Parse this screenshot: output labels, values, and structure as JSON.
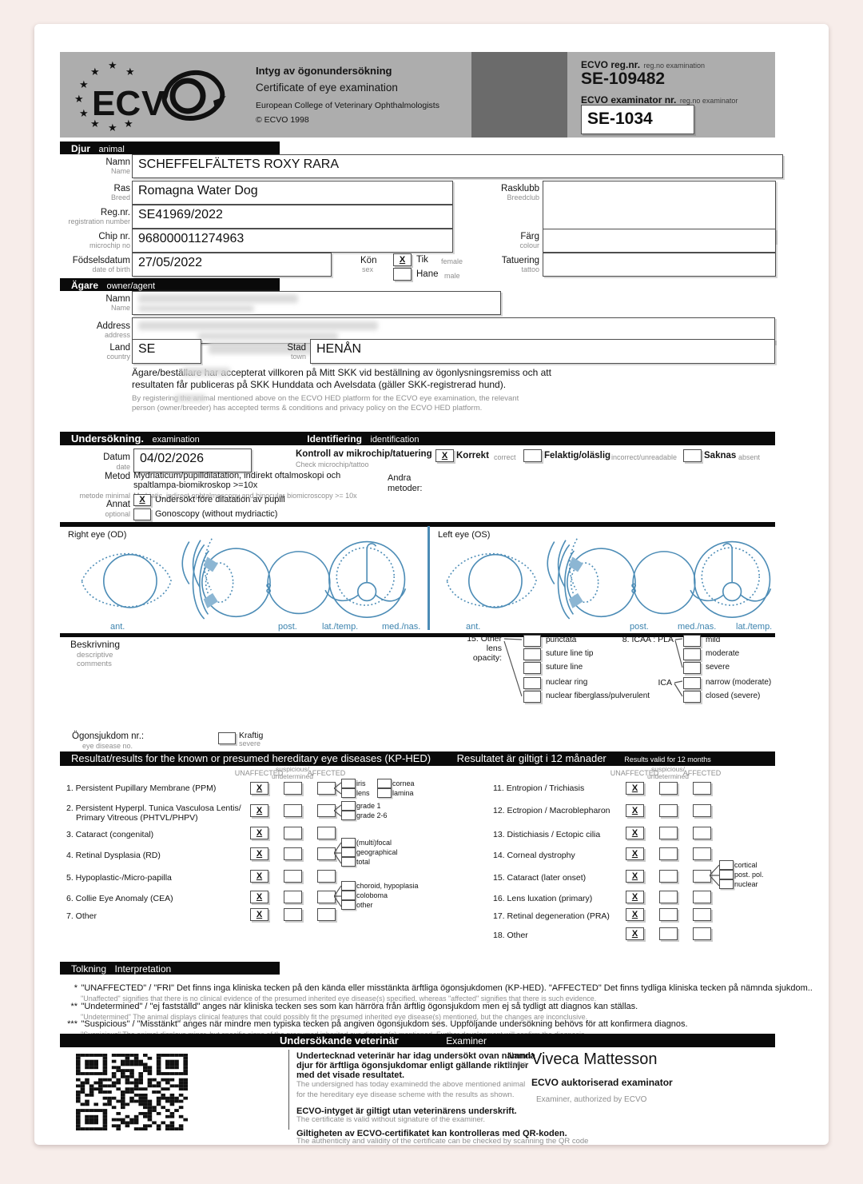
{
  "header": {
    "title_sv": "Intyg av ögonundersökning",
    "title_en": "Certificate of eye examination",
    "org": "European College of Veterinary Ophthalmologists",
    "copyright": "© ECVO 1998",
    "regnr_label": "ECVO reg.nr.",
    "regnr_sub": "reg.no examination",
    "regnr_value": "SE-109482",
    "examinator_label": "ECVO examinator nr.",
    "examinator_sub": "reg.no examinator",
    "examinator_value": "SE-1034",
    "logo_text": "ECVO"
  },
  "animal": {
    "section_sv": "Djur",
    "section_en": "animal",
    "name_label": "Namn",
    "name_sub": "Name",
    "name_value": "SCHEFFELFÄLTETS ROXY RARA",
    "breed_label": "Ras",
    "breed_sub": "Breed",
    "breed_value": "Romagna Water Dog",
    "regno_label": "Reg.nr.",
    "regno_sub": "registration number",
    "regno_value": "SE41969/2022",
    "chip_label": "Chip nr.",
    "chip_sub": "microchip no",
    "chip_value": "968000011274963",
    "dob_label": "Födselsdatum",
    "dob_sub": "date of birth",
    "dob_value": "27/05/2022",
    "sex_label": "Kön",
    "sex_sub": "sex",
    "sex_female_mark": "X",
    "sex_female_label": "Tik",
    "sex_female_sub": "female",
    "sex_male_mark": "",
    "sex_male_label": "Hane",
    "sex_male_sub": "male",
    "breedclub_label": "Rasklubb",
    "breedclub_sub": "Breedclub",
    "breedclub_value": "",
    "colour_label": "Färg",
    "colour_sub": "colour",
    "colour_value": "",
    "tattoo_label": "Tatuering",
    "tattoo_sub": "tattoo",
    "tattoo_value": ""
  },
  "owner": {
    "section_sv": "Ägare",
    "section_en": "owner/agent",
    "name_label": "Namn",
    "name_sub": "Name",
    "name_value": "",
    "address_label": "Address",
    "address_sub": "address",
    "address_value": "",
    "country_label": "Land",
    "country_sub": "country",
    "country_value": "SE",
    "town_label": "Stad",
    "town_sub": "town",
    "town_value": "HENÅN",
    "skk_sv": "Ägare/beställare har accepterat villkoren på Mitt SKK vid beställning av ögonlysningsremiss och att resultaten får publiceras på SKK Hunddata och Avelsdata (gäller SKK-registrerad hund).",
    "skk_en": "By registering the animal mentioned above on the ECVO HED platform for the ECVO eye examination, the relevant person (owner/breeder) has accepted terms & conditions and privacy policy on the ECVO HED platform."
  },
  "examination": {
    "section_sv": "Undersökning.",
    "section_en": "examination",
    "ident_sv": "Identifiering",
    "ident_en": "identification",
    "date_label": "Datum",
    "date_sub": "date",
    "date_value": "04/02/2026",
    "chipcheck_sv": "Kontroll av mikrochip/tatuering",
    "chipcheck_en": "Check microchip/tattoo",
    "opt_correct_mark": "X",
    "opt_correct_sv": "Korrekt",
    "opt_correct_en": "correct",
    "opt_incorrect_mark": "",
    "opt_incorrect_sv": "Felaktig/oläslig",
    "opt_incorrect_en": "incorrect/unreadable",
    "opt_absent_mark": "",
    "opt_absent_sv": "Saknas",
    "opt_absent_en": "absent",
    "method_label": "Metod",
    "method_sub": "metode minimal",
    "method_sv1": "Mydriaticum/pupilldilatation, indirekt oftalmoskopi och",
    "method_sv2": "spaltlampa-biomikroskop  >=10x",
    "method_en": "Mydriatic, indirect ophtalmoscopy and binocular biomicroscopy >= 10x",
    "other_methods_l1": "Andra",
    "other_methods_l2": "metoder:",
    "optional_label": "Annat",
    "optional_sub": "optional",
    "opt1_mark": "X",
    "opt1_label": "Undersökt före dilatation av pupill",
    "opt2_mark": "",
    "opt2_label": "Gonoscopy (without mydriactic)"
  },
  "diagrams": {
    "right_title": "Right eye (OD)",
    "left_title": "Left eye  (OS)",
    "right_labels": [
      "ant.",
      "post.",
      "lat./temp.",
      "med./nas."
    ],
    "left_labels": [
      "ant.",
      "post.",
      "med./nas.",
      "lat./temp."
    ]
  },
  "description": {
    "label": "Beskrivning",
    "sub1": "descriptive",
    "sub2": "comments",
    "lens_title_l1": "15. Other",
    "lens_title_l2": "lens",
    "lens_title_l3": "opacity:",
    "lens_options": [
      "punctata",
      "suture line tip",
      "suture line",
      "nuclear ring",
      "nuclear fiberglass/pulverulent"
    ],
    "icaa_title": "8. ICAA : PLA",
    "icaa_options": [
      "mild",
      "moderate",
      "severe"
    ],
    "ica_title": "ICA",
    "ica_options": [
      "narrow (moderate)",
      "closed (severe)"
    ],
    "disease_label": "Ögonsjukdom nr.:",
    "disease_sub": "eye disease no.",
    "disease_cb_label": "Kraftig",
    "disease_cb_sub": "severe"
  },
  "results": {
    "bar_title": "Resultat/results for the known or presumed hereditary eye diseases (KP-HED)",
    "valid_sv": "Resultatet är giltigt i 12 månader",
    "valid_en": "Results valid for 12 months",
    "col_unaffected": "UNAFFECTED",
    "col_susp1": "suspicious/",
    "col_susp2": "undetermined",
    "col_affected": "AFFECTED",
    "left_rows": [
      {
        "name": "1. Persistent Pupillary Membrane (PPM)",
        "name2": "",
        "u": "X",
        "s": "",
        "af": "",
        "subs": [
          "iris",
          "lens",
          "cornea",
          "lamina"
        ]
      },
      {
        "name": "2. Persistent Hyperpl. Tunica Vasculosa Lentis/",
        "name2": "Primary Vitreous (PHTVL/PHPV)",
        "u": "X",
        "s": "",
        "af": "",
        "subs": [
          "grade 1",
          "grade 2-6"
        ]
      },
      {
        "name": "3. Cataract (congenital)",
        "name2": "",
        "u": "X",
        "s": "",
        "af": "",
        "subs": []
      },
      {
        "name": "4. Retinal Dysplasia (RD)",
        "name2": "",
        "u": "X",
        "s": "",
        "af": "",
        "subs": [
          "(multi)focal",
          "geographical",
          "total"
        ]
      },
      {
        "name": "5. Hypoplastic-/Micro-papilla",
        "name2": "",
        "u": "X",
        "s": "",
        "af": "",
        "subs": []
      },
      {
        "name": "6. Collie Eye Anomaly (CEA)",
        "name2": "",
        "u": "X",
        "s": "",
        "af": "",
        "subs": [
          "choroid, hypoplasia",
          "coloboma",
          "other"
        ]
      },
      {
        "name": "7. Other",
        "name2": "",
        "u": "X",
        "s": "",
        "af": "",
        "subs": []
      }
    ],
    "right_rows": [
      {
        "name": "11. Entropion / Trichiasis",
        "u": "X",
        "s": "",
        "af": "",
        "subs": []
      },
      {
        "name": "12. Ectropion / Macroblepharon",
        "u": "X",
        "s": "",
        "af": "",
        "subs": []
      },
      {
        "name": "13. Distichiasis / Ectopic cilia",
        "u": "X",
        "s": "",
        "af": "",
        "subs": []
      },
      {
        "name": "14. Corneal dystrophy",
        "u": "X",
        "s": "",
        "af": "",
        "subs": []
      },
      {
        "name": "15. Cataract (later onset)",
        "u": "X",
        "s": "",
        "af": "",
        "subs": [
          "cortical",
          "post. pol.",
          "nuclear"
        ]
      },
      {
        "name": "16. Lens luxation (primary)",
        "u": "X",
        "s": "",
        "af": "",
        "subs": []
      },
      {
        "name": "17. Retinal degeneration (PRA)",
        "u": "X",
        "s": "",
        "af": "",
        "subs": []
      },
      {
        "name": "18. Other",
        "u": "X",
        "s": "",
        "af": "",
        "subs": []
      }
    ]
  },
  "interpretation": {
    "bar_sv": "Tolkning",
    "bar_en": "Interpretation",
    "items": [
      {
        "stars": "*",
        "sv": "\"UNAFFECTED\" / \"FRI\" Det finns inga kliniska tecken på den kända eller misstänkta ärftliga ögonsjukdomen (KP-HED). \"AFFECTED\" Det finns tydliga kliniska tecken på nämnda sjukdom..",
        "en": "\"Unaffected\" signifies that there is no clinical evidence of the presumed inherited eye disease(s) specified, whereas \"affected\" signifies that there is such evidence."
      },
      {
        "stars": "**",
        "sv": "\"Undetermined\" / \"ej fastställd\" anges när kliniska tecken ses som kan härröra från ärftlig ögonsjukdom men ej så tydligt att diagnos kan ställas.",
        "en": "\"Undetermined\" The animal displays clinical features that could possibly fit the presumed inherited eye disease(s) mentioned, but the changes are inconclusive."
      },
      {
        "stars": "***",
        "sv": "\"Suspicious\" / \"Misstänkt\" anges när mindre men typiska tecken på angiven ögonsjukdom ses. Uppföljande undersökning behövs för att konfirmera diagnos.",
        "en": "\"Suspicious\" The animal displays minor, but specific signs of the presumed inherited eye disease(s) mentioned. Further development will confirm the diagnosis."
      }
    ]
  },
  "examiner": {
    "bar_sv": "Undersökande veterinär",
    "bar_en": "Examiner",
    "p1_sv1": "Undertecknad veterinär har idag undersökt ovan nämnda",
    "p1_sv2": "djur  för ärftliga ögonsjukdomar enligt gällande riktlinjer",
    "p1_sv3": "med  det visade resultatet.",
    "p1_en1": "The undersigned has today examinedd the above mentioned  animal",
    "p1_en2": "for the hereditary eye disease scheme with the results  as shown.",
    "p2_sv": "ECVO-intyget är giltigt utan veterinärens underskrift.",
    "p2_en": "The certificate is valid without signature of the examiner.",
    "p3_sv": "Giltigheten av ECVO-certifikatet kan kontrolleras med QR-koden.",
    "p3_en": "The authenticity and validity of the certificate can be checked by scanning the QR code",
    "name_label": "Namn",
    "name_sub": "Name",
    "name_value": "Viveca Mattesson",
    "cred_sv": "ECVO auktoriserad examinator",
    "cred_en": "Examiner, authorized by ECVO"
  }
}
